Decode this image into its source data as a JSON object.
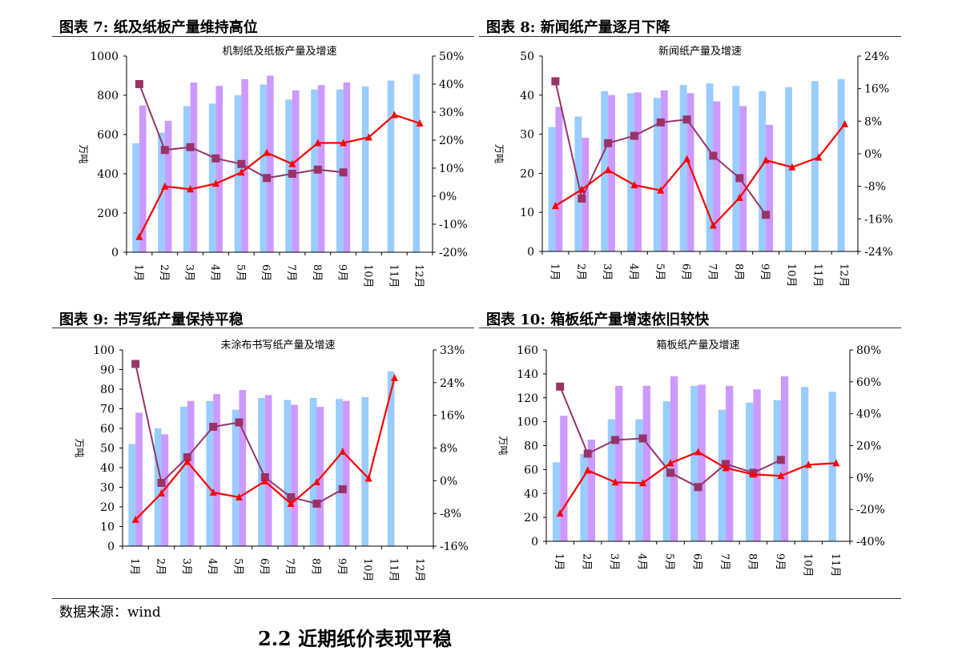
{
  "figures": [
    {
      "label": "图表 7:",
      "title": "纸及纸板产量维持高位"
    },
    {
      "label": "图表 8:",
      "title": "新闻纸产量逐月下降"
    },
    {
      "label": "图表 9:",
      "title": "书写纸产量保持平稳"
    },
    {
      "label": "图表 10:",
      "title": "箱板纸产量增速依旧较快"
    }
  ],
  "footer": {
    "source": "数据来源：wind",
    "section_heading": "2.2 近期纸价表现平稳"
  },
  "colors": {
    "bar_2016": "#99ccff",
    "bar_2017": "#cc99ff",
    "line_growth_2017": "#993366",
    "line_growth_2016": "#ff0000"
  },
  "chart_data": [
    {
      "type": "bar",
      "title": "机制纸及纸板产量及增速",
      "ylabel": "万吨",
      "categories": [
        "1月",
        "2月",
        "3月",
        "4月",
        "5月",
        "6月",
        "7月",
        "8月",
        "9月",
        "10月",
        "11月",
        "12月"
      ],
      "ylim": [
        0,
        1000
      ],
      "yticks": [
        "0",
        "200",
        "400",
        "600",
        "800",
        "1000"
      ],
      "y2lim": [
        -20,
        50
      ],
      "y2ticks": [
        "-20%",
        "-10%",
        "0%",
        "10%",
        "20%",
        "30%",
        "40%",
        "50%"
      ],
      "series": [
        {
          "kind": "bar",
          "values": [
            555,
            610,
            745,
            758,
            800,
            855,
            778,
            830,
            830,
            845,
            875,
            908
          ]
        },
        {
          "kind": "bar",
          "values": [
            748,
            670,
            865,
            848,
            882,
            900,
            825,
            852,
            865,
            null,
            null,
            null
          ]
        },
        {
          "kind": "line",
          "axis": "right",
          "marker": "square",
          "values": [
            40,
            16.5,
            17.5,
            13.5,
            11.5,
            6.5,
            8,
            9.5,
            8.5,
            null,
            null,
            null
          ]
        },
        {
          "kind": "line",
          "axis": "right",
          "marker": "triangle",
          "values": [
            -14.5,
            3.5,
            2.5,
            4.5,
            8.5,
            15.5,
            11.5,
            19,
            19,
            21,
            29,
            26
          ]
        }
      ]
    },
    {
      "type": "bar",
      "title": "新闻纸产量及增速",
      "ylabel": "万吨",
      "categories": [
        "1月",
        "2月",
        "3月",
        "4月",
        "5月",
        "6月",
        "7月",
        "8月",
        "9月",
        "10月",
        "11月",
        "12月"
      ],
      "ylim": [
        0,
        50
      ],
      "yticks": [
        "0",
        "10",
        "20",
        "30",
        "40",
        "50"
      ],
      "y2lim": [
        -24,
        24
      ],
      "y2ticks": [
        "-24%",
        "-16%",
        "-8%",
        "0%",
        "8%",
        "16%",
        "24%"
      ],
      "series": [
        {
          "kind": "bar",
          "values": [
            31.8,
            34.5,
            41,
            40.5,
            39.3,
            42.6,
            43,
            42.4,
            41,
            42,
            43.6,
            44.1
          ]
        },
        {
          "kind": "bar",
          "values": [
            37,
            29.1,
            40,
            40.7,
            41.2,
            40.5,
            38.4,
            37.2,
            32.4,
            null,
            null,
            null
          ]
        },
        {
          "kind": "line",
          "axis": "right",
          "marker": "square",
          "values": [
            17.8,
            -11,
            2.6,
            4.4,
            7.7,
            8.4,
            -0.5,
            -6,
            -15,
            null,
            null,
            null
          ]
        },
        {
          "kind": "line",
          "axis": "right",
          "marker": "triangle",
          "values": [
            -12.8,
            -8.8,
            -4,
            -7.7,
            -9,
            -1.3,
            -17.6,
            -10.8,
            -1.6,
            -3.3,
            -0.9,
            7.3
          ]
        }
      ]
    },
    {
      "type": "bar",
      "title": "未涂布书写纸产量及增速",
      "ylabel": "万吨",
      "categories": [
        "1月",
        "2月",
        "3月",
        "4月",
        "5月",
        "6月",
        "7月",
        "8月",
        "9月",
        "10月",
        "11月",
        "12月"
      ],
      "ylim": [
        0,
        100
      ],
      "yticks": [
        "0",
        "10",
        "20",
        "30",
        "40",
        "50",
        "60",
        "70",
        "80",
        "90",
        "100"
      ],
      "y2lim": [
        -16,
        33
      ],
      "y2ticks": [
        "-16%",
        "-8%",
        "0%",
        "8%",
        "16%",
        "24%",
        "33%"
      ],
      "series": [
        {
          "kind": "bar",
          "values": [
            52,
            60,
            71,
            74,
            69.5,
            75.5,
            74.5,
            75.5,
            75,
            76,
            89,
            null
          ]
        },
        {
          "kind": "bar",
          "values": [
            68,
            57,
            74,
            77.5,
            79.5,
            77,
            72,
            71,
            74,
            null,
            null,
            null
          ]
        },
        {
          "kind": "line",
          "axis": "right",
          "marker": "square",
          "values": [
            29.5,
            -0.2,
            6.2,
            13.8,
            14.9,
            1.2,
            -3.8,
            -5.4,
            -1.8,
            null,
            null,
            null
          ]
        },
        {
          "kind": "line",
          "axis": "right",
          "marker": "triangle",
          "values": [
            -9.4,
            -2.8,
            5.1,
            -2.6,
            -3.8,
            0.2,
            -5.4,
            0,
            7.6,
            0.9,
            26,
            null
          ]
        }
      ]
    },
    {
      "type": "bar",
      "title": "箱板纸产量及增速",
      "ylabel": "万吨",
      "categories": [
        "1月",
        "2月",
        "3月",
        "4月",
        "5月",
        "6月",
        "7月",
        "8月",
        "9月",
        "10月",
        "11月"
      ],
      "ylim": [
        0,
        160
      ],
      "yticks": [
        "0",
        "20",
        "40",
        "60",
        "80",
        "100",
        "120",
        "140",
        "160"
      ],
      "y2lim": [
        -40,
        80
      ],
      "y2ticks": [
        "-40%",
        "-20%",
        "0%",
        "20%",
        "40%",
        "60%",
        "80%"
      ],
      "series": [
        {
          "kind": "bar",
          "values": [
            66,
            73,
            102,
            102,
            117,
            130,
            110,
            116,
            118,
            129,
            125
          ]
        },
        {
          "kind": "bar",
          "values": [
            105,
            85,
            130,
            130,
            138,
            131,
            130,
            127,
            138,
            null,
            null
          ]
        },
        {
          "kind": "line",
          "axis": "right",
          "marker": "square",
          "values": [
            57,
            15,
            23.5,
            24.5,
            3,
            -6,
            8.5,
            3,
            11,
            null,
            null
          ]
        },
        {
          "kind": "line",
          "axis": "right",
          "marker": "triangle",
          "values": [
            -22.5,
            4.5,
            -3,
            -3.5,
            9,
            16,
            6,
            2,
            1,
            8,
            9
          ]
        }
      ]
    }
  ]
}
